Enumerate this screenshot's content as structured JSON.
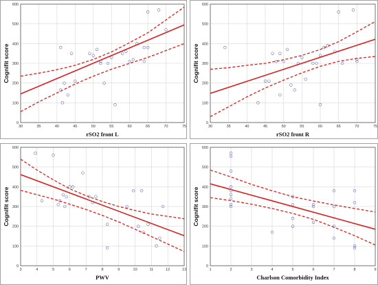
{
  "figure": {
    "line_color": "#d62020",
    "point_color": "#5a64b4"
  },
  "chart_data": [
    {
      "type": "scatter",
      "xlabel": "rSO2 front L",
      "ylabel": "Cognifit score",
      "xlim": [
        30,
        75
      ],
      "ylim": [
        0,
        600
      ],
      "xticks": [
        30,
        35,
        40,
        45,
        50,
        55,
        60,
        65,
        70,
        75
      ],
      "yticks": [
        0,
        100,
        200,
        300,
        400,
        500,
        600
      ],
      "grid": true,
      "points": [
        {
          "x": 41,
          "y": 380
        },
        {
          "x": 41,
          "y": 165
        },
        {
          "x": 41.5,
          "y": 100
        },
        {
          "x": 42,
          "y": 200
        },
        {
          "x": 43,
          "y": 140
        },
        {
          "x": 44,
          "y": 350
        },
        {
          "x": 45,
          "y": 210
        },
        {
          "x": 49,
          "y": 350
        },
        {
          "x": 50,
          "y": 340
        },
        {
          "x": 51,
          "y": 370
        },
        {
          "x": 52,
          "y": 310
        },
        {
          "x": 52,
          "y": 300
        },
        {
          "x": 53,
          "y": 200
        },
        {
          "x": 54,
          "y": 300
        },
        {
          "x": 55,
          "y": 330
        },
        {
          "x": 56,
          "y": 90
        },
        {
          "x": 58,
          "y": 350
        },
        {
          "x": 59,
          "y": 360
        },
        {
          "x": 60,
          "y": 310
        },
        {
          "x": 61,
          "y": 320
        },
        {
          "x": 62,
          "y": 400
        },
        {
          "x": 64,
          "y": 310
        },
        {
          "x": 64,
          "y": 380
        },
        {
          "x": 65,
          "y": 560
        },
        {
          "x": 65,
          "y": 380
        },
        {
          "x": 68,
          "y": 570
        },
        {
          "x": 70,
          "y": 470
        }
      ],
      "fit": {
        "x": [
          30,
          75
        ],
        "y": [
          145,
          495
        ]
      },
      "ci_upper": {
        "x": [
          30,
          35,
          40,
          45,
          50,
          55,
          60,
          65,
          70,
          75
        ],
        "y": [
          235,
          250,
          268,
          290,
          320,
          358,
          405,
          455,
          520,
          585
        ]
      },
      "ci_lower": {
        "x": [
          30,
          35,
          40,
          45,
          50,
          55,
          60,
          65,
          70,
          75
        ],
        "y": [
          55,
          105,
          150,
          195,
          235,
          270,
          300,
          330,
          365,
          400
        ]
      }
    },
    {
      "type": "scatter",
      "xlabel": "rSO2 front R",
      "ylabel": "Cognifit score",
      "xlim": [
        30,
        75
      ],
      "ylim": [
        0,
        600
      ],
      "xticks": [
        30,
        35,
        40,
        45,
        50,
        55,
        60,
        65,
        70,
        75
      ],
      "yticks": [
        0,
        100,
        200,
        300,
        400,
        500,
        600
      ],
      "grid": true,
      "points": [
        {
          "x": 34,
          "y": 380
        },
        {
          "x": 43,
          "y": 100
        },
        {
          "x": 45,
          "y": 210
        },
        {
          "x": 46,
          "y": 210
        },
        {
          "x": 47,
          "y": 350
        },
        {
          "x": 48,
          "y": 310
        },
        {
          "x": 49,
          "y": 350
        },
        {
          "x": 49,
          "y": 140
        },
        {
          "x": 50,
          "y": 310
        },
        {
          "x": 51,
          "y": 370
        },
        {
          "x": 52,
          "y": 190
        },
        {
          "x": 53,
          "y": 165
        },
        {
          "x": 54,
          "y": 300
        },
        {
          "x": 55,
          "y": 330
        },
        {
          "x": 56,
          "y": 220
        },
        {
          "x": 58,
          "y": 300
        },
        {
          "x": 59,
          "y": 300
        },
        {
          "x": 60,
          "y": 340
        },
        {
          "x": 60,
          "y": 90
        },
        {
          "x": 61,
          "y": 380
        },
        {
          "x": 62,
          "y": 390
        },
        {
          "x": 64,
          "y": 360
        },
        {
          "x": 65,
          "y": 560
        },
        {
          "x": 66,
          "y": 300
        },
        {
          "x": 69,
          "y": 570
        },
        {
          "x": 70,
          "y": 320
        },
        {
          "x": 70,
          "y": 310
        }
      ],
      "fit": {
        "x": [
          30,
          75
        ],
        "y": [
          148,
          422
        ]
      },
      "ci_upper": {
        "x": [
          30,
          35,
          40,
          45,
          50,
          55,
          60,
          65,
          70,
          75
        ],
        "y": [
          270,
          278,
          290,
          300,
          318,
          340,
          370,
          410,
          460,
          512
        ]
      },
      "ci_lower": {
        "x": [
          30,
          35,
          40,
          45,
          50,
          55,
          60,
          65,
          70,
          75
        ],
        "y": [
          30,
          80,
          130,
          175,
          215,
          252,
          285,
          310,
          325,
          335
        ]
      }
    },
    {
      "type": "scatter",
      "xlabel": "PWV",
      "ylabel": "Cognifit score",
      "xlim": [
        3,
        13
      ],
      "ylim": [
        0,
        600
      ],
      "xticks": [
        3,
        4,
        5,
        6,
        7,
        8,
        9,
        10,
        11,
        12,
        13
      ],
      "yticks": [
        0,
        100,
        200,
        300,
        400,
        500,
        600
      ],
      "grid": true,
      "points": [
        {
          "x": 3.9,
          "y": 570
        },
        {
          "x": 4.3,
          "y": 330
        },
        {
          "x": 5.0,
          "y": 560
        },
        {
          "x": 5.3,
          "y": 310
        },
        {
          "x": 5.4,
          "y": 330
        },
        {
          "x": 5.6,
          "y": 360
        },
        {
          "x": 5.7,
          "y": 300
        },
        {
          "x": 5.8,
          "y": 350
        },
        {
          "x": 6.0,
          "y": 400
        },
        {
          "x": 6.2,
          "y": 400
        },
        {
          "x": 6.8,
          "y": 470
        },
        {
          "x": 7.2,
          "y": 350
        },
        {
          "x": 7.4,
          "y": 320
        },
        {
          "x": 7.6,
          "y": 350
        },
        {
          "x": 8.3,
          "y": 210
        },
        {
          "x": 8.3,
          "y": 90
        },
        {
          "x": 9.5,
          "y": 300
        },
        {
          "x": 9.9,
          "y": 380
        },
        {
          "x": 10.2,
          "y": 200
        },
        {
          "x": 10.4,
          "y": 380
        },
        {
          "x": 10.5,
          "y": 170
        },
        {
          "x": 10.8,
          "y": 210
        },
        {
          "x": 11.3,
          "y": 100
        },
        {
          "x": 11.5,
          "y": 140
        },
        {
          "x": 11.7,
          "y": 300
        }
      ],
      "fit": {
        "x": [
          3,
          13
        ],
        "y": [
          462,
          152
        ]
      },
      "ci_upper": {
        "x": [
          3,
          4,
          5,
          6,
          7,
          8,
          9,
          10,
          11,
          12,
          13
        ],
        "y": [
          540,
          485,
          435,
          390,
          355,
          325,
          300,
          280,
          262,
          250,
          238
        ]
      },
      "ci_lower": {
        "x": [
          3,
          4,
          5,
          6,
          7,
          8,
          9,
          10,
          11,
          12,
          13
        ],
        "y": [
          382,
          360,
          338,
          312,
          285,
          255,
          222,
          185,
          148,
          110,
          72
        ]
      }
    },
    {
      "type": "scatter",
      "xlabel": "Charlson Comorbidity Index",
      "ylabel": "Cognifit score",
      "xlim": [
        1,
        9
      ],
      "ylim": [
        0,
        600
      ],
      "xticks": [
        1,
        2,
        3,
        4,
        5,
        6,
        7,
        8,
        9
      ],
      "yticks": [
        0,
        100,
        200,
        300,
        400,
        500,
        600
      ],
      "grid": true,
      "points": [
        {
          "x": 2,
          "y": 570
        },
        {
          "x": 2,
          "y": 555
        },
        {
          "x": 2,
          "y": 480
        },
        {
          "x": 2,
          "y": 400
        },
        {
          "x": 2,
          "y": 380
        },
        {
          "x": 2,
          "y": 360
        },
        {
          "x": 2,
          "y": 340
        },
        {
          "x": 2,
          "y": 310
        },
        {
          "x": 2,
          "y": 300
        },
        {
          "x": 4,
          "y": 170
        },
        {
          "x": 5,
          "y": 350
        },
        {
          "x": 5,
          "y": 310
        },
        {
          "x": 5,
          "y": 240
        },
        {
          "x": 5,
          "y": 200
        },
        {
          "x": 6,
          "y": 310
        },
        {
          "x": 6,
          "y": 300
        },
        {
          "x": 6,
          "y": 220
        },
        {
          "x": 7,
          "y": 380
        },
        {
          "x": 7,
          "y": 300
        },
        {
          "x": 7,
          "y": 200
        },
        {
          "x": 7,
          "y": 140
        },
        {
          "x": 8,
          "y": 380
        },
        {
          "x": 8,
          "y": 320
        },
        {
          "x": 8,
          "y": 100
        },
        {
          "x": 8,
          "y": 90
        }
      ],
      "fit": {
        "x": [
          1,
          9
        ],
        "y": [
          415,
          185
        ]
      },
      "ci_upper": {
        "x": [
          1,
          2,
          3,
          4,
          5,
          6,
          7,
          8,
          9
        ],
        "y": [
          485,
          450,
          412,
          380,
          350,
          328,
          308,
          290,
          272
        ]
      },
      "ci_lower": {
        "x": [
          1,
          2,
          3,
          4,
          5,
          6,
          7,
          8,
          9
        ],
        "y": [
          345,
          330,
          312,
          290,
          265,
          235,
          195,
          152,
          105
        ]
      }
    }
  ]
}
